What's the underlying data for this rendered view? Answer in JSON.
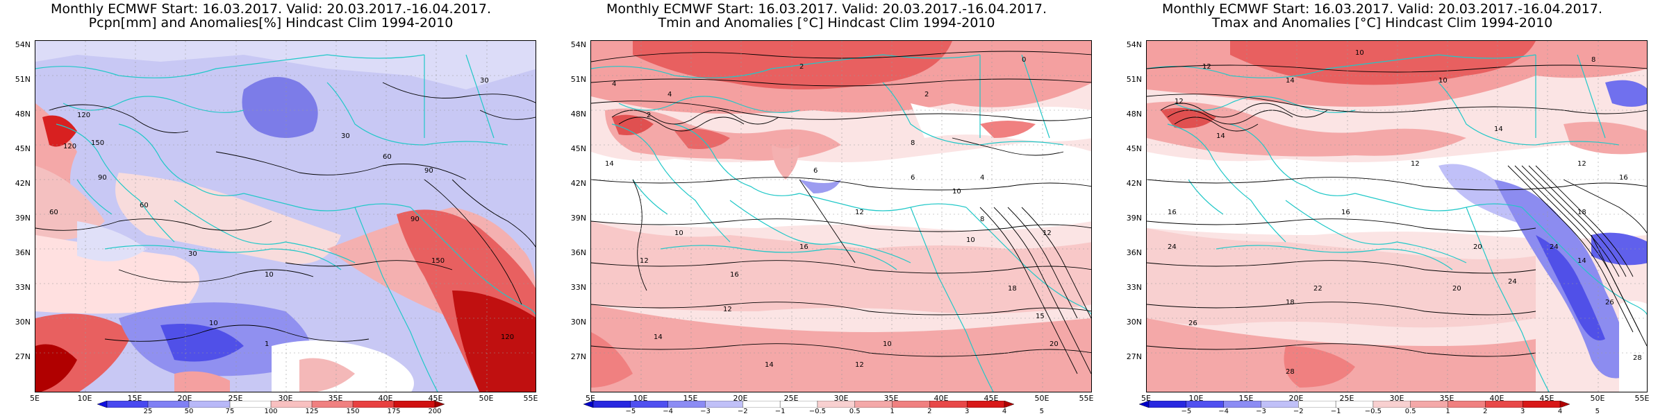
{
  "panels": [
    {
      "id": "pcpn",
      "title_line1": "Monthly ECMWF Start: 16.03.2017. Valid: 20.03.2017.-16.04.2017.",
      "title_line2": "Pcpn[mm] and Anomalies[%] Hindcast Clim 1994-2010",
      "colorbar": {
        "colors": [
          "#1010e0",
          "#4848f0",
          "#8080f4",
          "#b8b8f8",
          "#ffffff",
          "#f8c0c0",
          "#f08080",
          "#e84040",
          "#d01010",
          "#a00000"
        ],
        "labels": [
          "25",
          "50",
          "75",
          "100",
          "125",
          "150",
          "175",
          "200"
        ]
      },
      "contour_labels": [
        "30",
        "60",
        "90",
        "120",
        "150",
        "10",
        "1",
        "90",
        "60",
        "30",
        "90",
        "120",
        "150",
        "120",
        "60",
        "30",
        "10"
      ]
    },
    {
      "id": "tmin",
      "title_line1": "Monthly ECMWF Start: 16.03.2017. Valid: 20.03.2017.-16.04.2017.",
      "title_line2": "Tmin and Anomalies [°C] Hindcast Clim 1994-2010",
      "colorbar": {
        "colors": [
          "#0000c8",
          "#2828e0",
          "#5050f0",
          "#8c8cf4",
          "#c0c0f8",
          "#ffffff",
          "#ffffff",
          "#f8d0d0",
          "#f4a8a8",
          "#f08080",
          "#e84848",
          "#d81818",
          "#b00000"
        ],
        "labels": [
          "−5",
          "−4",
          "−3",
          "−2",
          "−1",
          "−0.5",
          "0.5",
          "1",
          "2",
          "3",
          "4",
          "5"
        ]
      },
      "contour_labels": [
        "4",
        "2",
        "0",
        "4",
        "2",
        "8",
        "10",
        "12",
        "14",
        "16",
        "14",
        "12",
        "10",
        "8",
        "6",
        "4",
        "12",
        "16",
        "14",
        "2",
        "6",
        "10",
        "12",
        "20",
        "15",
        "18",
        "12",
        "10"
      ]
    },
    {
      "id": "tmax",
      "title_line1": "Monthly ECMWF Start: 16.03.2017. Valid: 20.03.2017.-16.04.2017.",
      "title_line2": "Tmax and Anomalies [°C] Hindcast Clim 1994-2010",
      "colorbar": {
        "colors": [
          "#0000c8",
          "#2828e0",
          "#5050f0",
          "#8c8cf4",
          "#c0c0f8",
          "#ffffff",
          "#ffffff",
          "#f8d0d0",
          "#f4a8a8",
          "#f08080",
          "#e84848",
          "#d81818",
          "#b00000"
        ],
        "labels": [
          "−5",
          "−4",
          "−3",
          "−2",
          "−1",
          "−0.5",
          "0.5",
          "1",
          "2",
          "3",
          "4",
          "5"
        ]
      },
      "contour_labels": [
        "12",
        "10",
        "8",
        "14",
        "12",
        "10",
        "14",
        "16",
        "12",
        "14",
        "18",
        "22",
        "16",
        "24",
        "26",
        "28",
        "12",
        "20",
        "24",
        "14",
        "16",
        "18",
        "20",
        "24",
        "26",
        "28"
      ]
    }
  ],
  "axes": {
    "lat_labels": [
      "54N",
      "51N",
      "48N",
      "45N",
      "42N",
      "39N",
      "36N",
      "33N",
      "30N",
      "27N"
    ],
    "lon_labels": [
      "5E",
      "10E",
      "15E",
      "20E",
      "25E",
      "30E",
      "35E",
      "40E",
      "45E",
      "50E",
      "55E"
    ]
  }
}
